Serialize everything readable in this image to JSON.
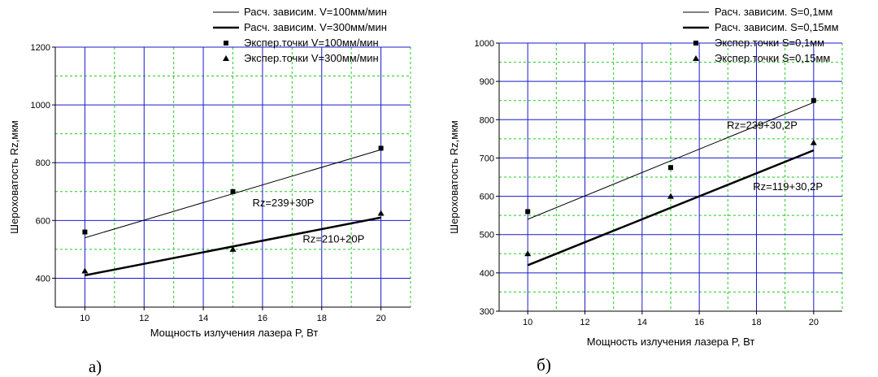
{
  "chart_data": [
    {
      "type": "line",
      "caption": "а)",
      "xlabel": "Мощность излучения лазера P, Вт",
      "ylabel": "Шероховатость Rz,мкм",
      "xlim": [
        9,
        21
      ],
      "ylim": [
        300,
        1200
      ],
      "x_ticks": [
        10,
        12,
        14,
        16,
        18,
        20
      ],
      "y_ticks": [
        400,
        600,
        800,
        1000,
        1200
      ],
      "grid": true,
      "legend_position": "top-right",
      "series": [
        {
          "name": "Расч. зависим. V=100мм/мин",
          "style": "thin-line",
          "x": [
            10,
            20
          ],
          "y": [
            540,
            845
          ]
        },
        {
          "name": "Расч. зависим. V=300мм/мин",
          "style": "thick-line",
          "x": [
            10,
            20
          ],
          "y": [
            410,
            610
          ]
        },
        {
          "name": "Экспер.точки V=100мм/мин",
          "style": "square",
          "x": [
            10,
            15,
            20
          ],
          "y": [
            560,
            700,
            850
          ]
        },
        {
          "name": "Экспер.точки V=300мм/мин",
          "style": "triangle",
          "x": [
            10,
            15,
            20
          ],
          "y": [
            425,
            500,
            625
          ]
        }
      ],
      "annotations": [
        {
          "text": "Rz=239+30P",
          "x": 16.7,
          "y": 660
        },
        {
          "text": "Rz=210+20P",
          "x": 18.4,
          "y": 535
        }
      ]
    },
    {
      "type": "line",
      "caption": "б)",
      "xlabel": "Мощность излучения лазера P, Вт",
      "ylabel": "Шероховатость Rz,мкм",
      "xlim": [
        9,
        21
      ],
      "ylim": [
        300,
        1000
      ],
      "x_ticks": [
        10,
        12,
        14,
        16,
        18,
        20
      ],
      "y_ticks": [
        300,
        400,
        500,
        600,
        700,
        800,
        900,
        1000
      ],
      "grid": true,
      "legend_position": "top-right",
      "series": [
        {
          "name": "Расч. зависим. S=0,1мм",
          "style": "thin-line",
          "x": [
            10,
            20
          ],
          "y": [
            540,
            845
          ]
        },
        {
          "name": "Расч. зависим. S=0,15мм",
          "style": "thick-line",
          "x": [
            10,
            20
          ],
          "y": [
            420,
            720
          ]
        },
        {
          "name": "Экспер.точки S=0,1мм",
          "style": "square",
          "x": [
            10,
            15,
            20
          ],
          "y": [
            560,
            675,
            850
          ]
        },
        {
          "name": "Экспер.точки S=0,15мм",
          "style": "triangle",
          "x": [
            10,
            15,
            20
          ],
          "y": [
            450,
            600,
            740
          ]
        }
      ],
      "annotations": [
        {
          "text": "Rz=239+30,2P",
          "x": 18.2,
          "y": 785
        },
        {
          "text": "Rz=119+30,2P",
          "x": 19.1,
          "y": 625
        }
      ]
    }
  ]
}
